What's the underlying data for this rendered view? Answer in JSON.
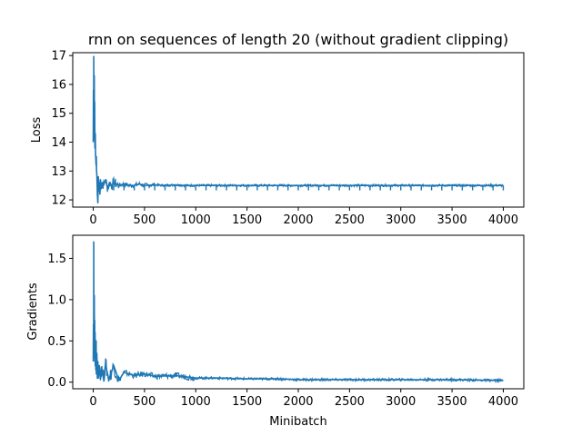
{
  "title": "rnn on sequences of length 20 (without gradient clipping)",
  "chart_data": [
    {
      "type": "line",
      "title": "rnn on sequences of length 20 (without gradient clipping)",
      "xlabel": "",
      "ylabel": "Loss",
      "xlim": [
        -200,
        4200
      ],
      "ylim": [
        11.75,
        17.1
      ],
      "xticks": [
        0,
        500,
        1000,
        1500,
        2000,
        2500,
        3000,
        3500,
        4000
      ],
      "yticks": [
        12,
        13,
        14,
        15,
        16,
        17
      ],
      "line_color": "#1f77b4",
      "grid": false,
      "series": [
        {
          "name": "",
          "x": [
            0,
            2,
            4,
            5,
            6,
            8,
            10,
            12,
            14,
            16,
            18,
            20,
            22,
            25,
            28,
            30,
            32,
            35,
            38,
            40,
            45,
            50,
            55,
            60,
            65,
            70,
            80,
            90,
            100,
            120,
            140,
            160,
            180,
            200,
            250,
            300,
            350,
            400,
            450,
            500,
            600,
            700,
            800,
            900,
            1000,
            1200,
            1400,
            1600,
            1800,
            2000,
            2200,
            2400,
            2600,
            2800,
            3000,
            3200,
            3400,
            3600,
            3800,
            4000
          ],
          "values": [
            14.0,
            15.8,
            14.6,
            16.97,
            15.0,
            14.2,
            16.3,
            14.1,
            15.4,
            13.8,
            13.9,
            14.3,
            13.6,
            13.4,
            13.2,
            13.5,
            13.0,
            12.9,
            12.5,
            12.2,
            11.9,
            12.8,
            12.3,
            12.6,
            12.2,
            12.7,
            12.4,
            12.6,
            12.5,
            12.7,
            12.4,
            12.6,
            12.5,
            12.6,
            12.5,
            12.55,
            12.5,
            12.5,
            12.55,
            12.5,
            12.52,
            12.5,
            12.52,
            12.5,
            12.5,
            12.5,
            12.5,
            12.5,
            12.5,
            12.5,
            12.5,
            12.5,
            12.5,
            12.5,
            12.5,
            12.5,
            12.5,
            12.5,
            12.5,
            12.5
          ]
        }
      ]
    },
    {
      "type": "line",
      "title": "",
      "xlabel": "Minibatch",
      "ylabel": "Gradients",
      "xlim": [
        -200,
        4200
      ],
      "ylim": [
        -0.08,
        1.78
      ],
      "xticks": [
        0,
        500,
        1000,
        1500,
        2000,
        2500,
        3000,
        3500,
        4000
      ],
      "yticks": [
        0.0,
        0.5,
        1.0,
        1.5
      ],
      "line_color": "#1f77b4",
      "grid": false,
      "series": [
        {
          "name": "",
          "x": [
            0,
            2,
            4,
            5,
            6,
            8,
            10,
            12,
            14,
            16,
            18,
            20,
            22,
            25,
            28,
            30,
            35,
            40,
            45,
            50,
            60,
            70,
            80,
            100,
            120,
            150,
            200,
            250,
            300,
            400,
            500,
            600,
            800,
            1000,
            1200,
            1500,
            1800,
            2000,
            2500,
            3000,
            3500,
            4000
          ],
          "values": [
            0.25,
            0.7,
            0.35,
            1.7,
            0.5,
            0.4,
            1.05,
            0.3,
            0.75,
            0.25,
            0.6,
            0.2,
            0.45,
            0.15,
            0.5,
            0.1,
            0.35,
            0.05,
            0.25,
            0.05,
            0.2,
            0.03,
            0.18,
            0.04,
            0.22,
            0.03,
            0.2,
            0.02,
            0.12,
            0.08,
            0.1,
            0.07,
            0.08,
            0.05,
            0.05,
            0.04,
            0.04,
            0.03,
            0.03,
            0.03,
            0.03,
            0.02
          ]
        }
      ]
    }
  ]
}
